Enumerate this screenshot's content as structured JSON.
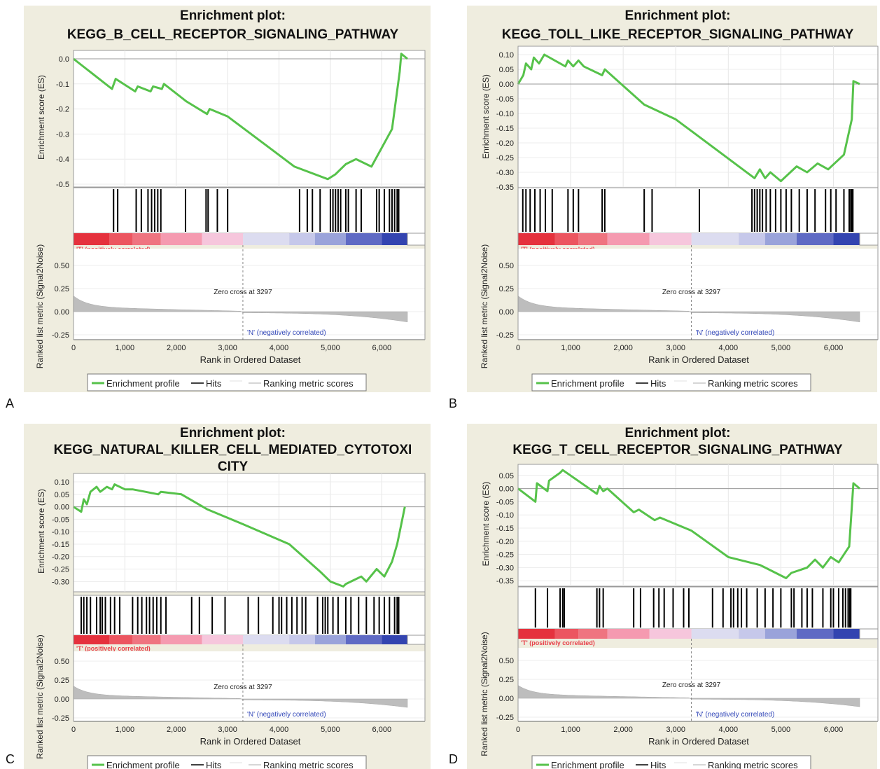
{
  "figure": {
    "panels": [
      {
        "letter": "A",
        "title_line1": "Enrichment plot:",
        "title_line2": "KEGG_B_CELL_RECEPTOR_SIGNALING_PATHWAY",
        "title_line3": ""
      },
      {
        "letter": "B",
        "title_line1": "Enrichment plot:",
        "title_line2": "KEGG_TOLL_LIKE_RECEPTOR_SIGNALING_PATHWAY",
        "title_line3": ""
      },
      {
        "letter": "C",
        "title_line1": "Enrichment plot:",
        "title_line2": "KEGG_NATURAL_KILLER_CELL_MEDIATED_CYTOTOXI",
        "title_line3": "CITY"
      },
      {
        "letter": "D",
        "title_line1": "Enrichment plot:",
        "title_line2": "KEGG_T_CELL_RECEPTOR_SIGNALING_PATHWAY",
        "title_line3": ""
      }
    ],
    "common": {
      "es_ylabel": "Enrichment score (ES)",
      "rank_ylabel": "Ranked list metric (Signal2Noise)",
      "xlabel": "Rank in Ordered Dataset",
      "pos_label": "'T' (positively correlated)",
      "neg_label": "'N' (negatively correlated)",
      "zero_cross": "Zero cross at 3297",
      "legend": [
        "Enrichment profile",
        "Hits",
        "Ranking metric scores"
      ],
      "x_ticks": [
        "0",
        "1,000",
        "2,000",
        "3,000",
        "4,000",
        "5,000",
        "6,000"
      ],
      "metric_ticks": [
        "0.50",
        "0.25",
        "0.00",
        "-0.25"
      ]
    },
    "colors": {
      "panel_bg": "#efeddf",
      "es_line": "#56c24a",
      "hit": "#000000",
      "pos_text": "#e8404a",
      "neg_text": "#3348b8",
      "metric_fill": "#bdbdbd"
    }
  },
  "chart_data": [
    {
      "type": "line",
      "title": "Enrichment plot: KEGG_B_CELL_RECEPTOR_SIGNALING_PATHWAY",
      "xlabel": "Rank in Ordered Dataset",
      "ylabel": "Enrichment score (ES)",
      "xlim": [
        0,
        6500
      ],
      "ylim": [
        -0.5,
        0.0
      ],
      "y_ticks": [
        "0.0",
        "-0.1",
        "-0.2",
        "-0.3",
        "-0.4",
        "-0.5"
      ],
      "series": [
        {
          "name": "Enrichment profile",
          "x": [
            0,
            750,
            820,
            1200,
            1250,
            1500,
            1550,
            1720,
            1760,
            2200,
            2600,
            2650,
            3000,
            4300,
            4950,
            5100,
            5300,
            5500,
            5800,
            6200,
            6350,
            6380,
            6500
          ],
          "y": [
            0.0,
            -0.12,
            -0.08,
            -0.13,
            -0.11,
            -0.13,
            -0.11,
            -0.12,
            -0.1,
            -0.17,
            -0.22,
            -0.2,
            -0.23,
            -0.43,
            -0.48,
            -0.46,
            -0.42,
            -0.4,
            -0.43,
            -0.28,
            -0.05,
            0.02,
            0.0
          ]
        }
      ],
      "hits": [
        780,
        860,
        1220,
        1320,
        1450,
        1520,
        1580,
        1640,
        1700,
        2180,
        2580,
        2620,
        2800,
        3000,
        4400,
        4550,
        4650,
        4800,
        5000,
        5050,
        5100,
        5150,
        5200,
        5300,
        5350,
        5500,
        5600,
        5900,
        5950,
        6050,
        6150,
        6200,
        6250,
        6300,
        6330
      ],
      "metric_yticks": [
        0.5,
        0.25,
        0.0,
        -0.25
      ],
      "zero_cross": 3297,
      "legend": [
        "Enrichment profile",
        "Hits",
        "Ranking metric scores"
      ],
      "grid": true
    },
    {
      "type": "line",
      "title": "Enrichment plot: KEGG_TOLL_LIKE_RECEPTOR_SIGNALING_PATHWAY",
      "xlabel": "Rank in Ordered Dataset",
      "ylabel": "Enrichment score (ES)",
      "xlim": [
        0,
        6500
      ],
      "ylim": [
        -0.35,
        0.1
      ],
      "y_ticks": [
        "0.10",
        "0.05",
        "0.00",
        "-0.05",
        "-0.10",
        "-0.15",
        "-0.20",
        "-0.25",
        "-0.30",
        "-0.35"
      ],
      "series": [
        {
          "name": "Enrichment profile",
          "x": [
            0,
            100,
            150,
            250,
            300,
            400,
            500,
            900,
            950,
            1050,
            1150,
            1250,
            1600,
            1650,
            2400,
            3000,
            3300,
            4500,
            4600,
            4700,
            4800,
            5000,
            5300,
            5500,
            5700,
            5900,
            6200,
            6350,
            6380,
            6500
          ],
          "y": [
            0.0,
            0.03,
            0.07,
            0.05,
            0.09,
            0.07,
            0.1,
            0.06,
            0.08,
            0.06,
            0.08,
            0.06,
            0.03,
            0.05,
            -0.07,
            -0.12,
            -0.16,
            -0.32,
            -0.29,
            -0.32,
            -0.3,
            -0.33,
            -0.28,
            -0.3,
            -0.27,
            -0.29,
            -0.24,
            -0.12,
            0.01,
            0.0
          ]
        }
      ],
      "hits": [
        90,
        150,
        230,
        320,
        420,
        520,
        650,
        950,
        1050,
        1150,
        1600,
        1650,
        2400,
        2550,
        3450,
        4450,
        4500,
        4550,
        4600,
        4650,
        4720,
        4800,
        4900,
        5000,
        5100,
        5200,
        5350,
        5500,
        5650,
        5850,
        5950,
        6050,
        6200,
        6300,
        6330,
        6350,
        6370
      ],
      "metric_yticks": [
        0.5,
        0.25,
        0.0,
        -0.25
      ],
      "zero_cross": 3297,
      "legend": [
        "Enrichment profile",
        "Hits",
        "Ranking metric scores"
      ],
      "grid": true
    },
    {
      "type": "line",
      "title": "Enrichment plot: KEGG_NATURAL_KILLER_CELL_MEDIATED_CYTOTOXICITY",
      "xlabel": "Rank in Ordered Dataset",
      "ylabel": "Enrichment score (ES)",
      "xlim": [
        0,
        6500
      ],
      "ylim": [
        -0.33,
        0.1
      ],
      "y_ticks": [
        "0.10",
        "0.05",
        "0.00",
        "-0.05",
        "-0.10",
        "-0.15",
        "-0.20",
        "-0.25",
        "-0.30"
      ],
      "series": [
        {
          "name": "Enrichment profile",
          "x": [
            0,
            150,
            200,
            260,
            330,
            450,
            520,
            650,
            750,
            800,
            1000,
            1150,
            1400,
            1650,
            1700,
            2100,
            2600,
            3300,
            4200,
            4800,
            5000,
            5250,
            5300,
            5600,
            5700,
            5900,
            6050,
            6200,
            6300,
            6350,
            6450
          ],
          "y": [
            0.0,
            -0.02,
            0.03,
            0.01,
            0.06,
            0.08,
            0.06,
            0.08,
            0.07,
            0.09,
            0.07,
            0.07,
            0.06,
            0.05,
            0.06,
            0.05,
            -0.01,
            -0.07,
            -0.15,
            -0.26,
            -0.3,
            -0.32,
            -0.31,
            -0.28,
            -0.3,
            -0.25,
            -0.28,
            -0.22,
            -0.15,
            -0.1,
            0.0
          ]
        }
      ],
      "hits": [
        150,
        200,
        260,
        330,
        450,
        520,
        560,
        620,
        720,
        800,
        900,
        1150,
        1250,
        1330,
        1420,
        1480,
        1550,
        1620,
        1700,
        1800,
        2300,
        2450,
        2700,
        2950,
        3400,
        3600,
        3880,
        4000,
        4050,
        4150,
        4250,
        4350,
        4450,
        4520,
        4750,
        4850,
        4900,
        4950,
        5050,
        5150,
        5300,
        5400,
        5550,
        5700,
        5850,
        5950,
        6050,
        6150,
        6250,
        6300,
        6330
      ],
      "metric_yticks": [
        0.5,
        0.25,
        0.0,
        -0.25
      ],
      "zero_cross": 3297,
      "legend": [
        "Enrichment profile",
        "Hits",
        "Ranking metric scores"
      ],
      "grid": true
    },
    {
      "type": "line",
      "title": "Enrichment plot: KEGG_T_CELL_RECEPTOR_SIGNALING_PATHWAY",
      "xlabel": "Rank in Ordered Dataset",
      "ylabel": "Enrichment score (ES)",
      "xlim": [
        0,
        6500
      ],
      "ylim": [
        -0.36,
        0.06
      ],
      "y_ticks": [
        "0.05",
        "0.00",
        "-0.05",
        "-0.10",
        "-0.15",
        "-0.20",
        "-0.25",
        "-0.30",
        "-0.35"
      ],
      "series": [
        {
          "name": "Enrichment profile",
          "x": [
            0,
            330,
            360,
            560,
            590,
            800,
            850,
            1500,
            1550,
            1620,
            1700,
            2200,
            2300,
            2600,
            2700,
            3300,
            4000,
            4600,
            4700,
            5100,
            5200,
            5500,
            5650,
            5800,
            5950,
            6100,
            6300,
            6380,
            6500
          ],
          "y": [
            0.0,
            -0.05,
            0.02,
            -0.01,
            0.03,
            0.06,
            0.07,
            -0.02,
            0.01,
            -0.01,
            0.0,
            -0.09,
            -0.08,
            -0.12,
            -0.11,
            -0.16,
            -0.26,
            -0.29,
            -0.3,
            -0.34,
            -0.32,
            -0.3,
            -0.27,
            -0.3,
            -0.26,
            -0.28,
            -0.22,
            0.02,
            0.0
          ]
        }
      ],
      "hits": [
        330,
        560,
        800,
        850,
        880,
        1500,
        1550,
        1620,
        2200,
        2330,
        2580,
        2680,
        2780,
        2950,
        3150,
        3250,
        3700,
        3900,
        4050,
        4100,
        4180,
        4250,
        4350,
        4550,
        4700,
        4850,
        5000,
        5200,
        5250,
        5400,
        5500,
        5600,
        5800,
        5950,
        6000,
        6100,
        6180,
        6230,
        6280,
        6310,
        6330
      ],
      "metric_yticks": [
        0.5,
        0.25,
        0.0,
        -0.25
      ],
      "zero_cross": 3297,
      "legend": [
        "Enrichment profile",
        "Hits",
        "Ranking metric scores"
      ],
      "grid": true
    }
  ]
}
